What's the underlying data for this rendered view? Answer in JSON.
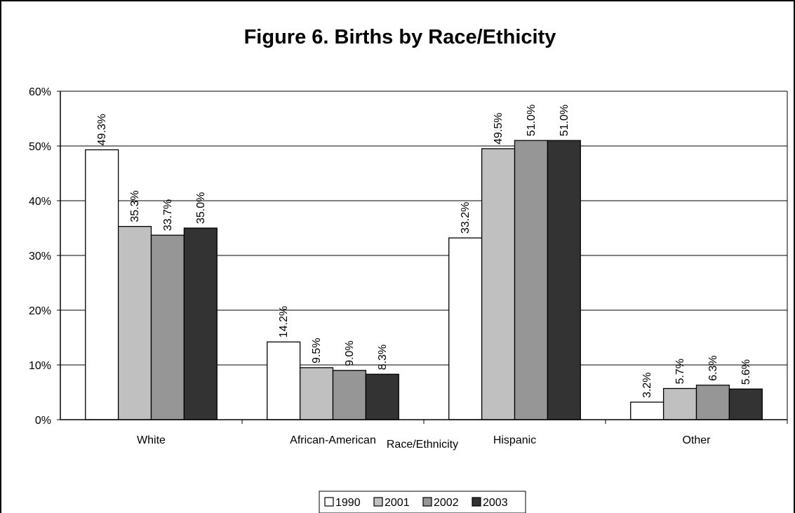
{
  "chart_data": {
    "type": "bar",
    "title": "Figure 6.  Births by Race/Ethicity",
    "xlabel": "Race/Ethnicity",
    "ylabel": "",
    "ylim": [
      0,
      60
    ],
    "yticks": [
      "0%",
      "10%",
      "20%",
      "30%",
      "40%",
      "50%",
      "60%"
    ],
    "grid": true,
    "legend_position": "bottom",
    "categories": [
      "White",
      "African-American",
      "Hispanic",
      "Other"
    ],
    "series": [
      {
        "name": "1990",
        "color": "#ffffff",
        "values": [
          49.3,
          14.2,
          33.2,
          3.2
        ],
        "labels": [
          "49.3%",
          "14.2%",
          "33.2%",
          "3.2%"
        ]
      },
      {
        "name": "2001",
        "color": "#c0c0c0",
        "values": [
          35.3,
          9.5,
          49.5,
          5.7
        ],
        "labels": [
          "35.3%",
          "9.5%",
          "49.5%",
          "5.7%"
        ]
      },
      {
        "name": "2002",
        "color": "#969696",
        "values": [
          33.7,
          9.0,
          51.0,
          6.3
        ],
        "labels": [
          "33.7%",
          "9.0%",
          "51.0%",
          "6.3%"
        ]
      },
      {
        "name": "2003",
        "color": "#333333",
        "values": [
          35.0,
          8.3,
          51.0,
          5.6
        ],
        "labels": [
          "35.0%",
          "8.3%",
          "51.0%",
          "5.6%"
        ]
      }
    ]
  }
}
